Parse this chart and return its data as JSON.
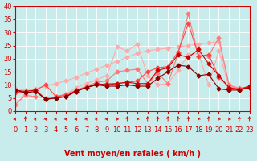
{
  "background_color": "#c8ecec",
  "grid_color": "#ffffff",
  "xlabel": "Vent moyen/en rafales ( km/h )",
  "xlim": [
    0,
    23
  ],
  "ylim": [
    0,
    40
  ],
  "xticks": [
    0,
    1,
    2,
    3,
    4,
    5,
    6,
    7,
    8,
    9,
    10,
    11,
    12,
    13,
    14,
    15,
    16,
    17,
    18,
    19,
    20,
    21,
    22,
    23
  ],
  "yticks": [
    0,
    5,
    10,
    15,
    20,
    25,
    30,
    35,
    40
  ],
  "tick_label_color": "#cc0000",
  "axis_label_color": "#cc0000",
  "axis_label_fontsize": 7,
  "tick_fontsize": 6,
  "lines": [
    {
      "x": [
        0,
        1,
        2,
        3,
        4,
        5,
        6,
        7,
        8,
        9,
        10,
        11,
        12,
        13,
        14,
        15,
        16,
        17,
        18,
        19,
        20,
        21,
        22,
        23
      ],
      "y": [
        8.5,
        8.0,
        8.5,
        9.5,
        10.5,
        11.5,
        13.0,
        14.5,
        16.0,
        17.5,
        19.0,
        20.5,
        22.0,
        23.0,
        23.5,
        24.0,
        24.5,
        25.0,
        25.5,
        26.0,
        26.5,
        9.5,
        9.0,
        9.0
      ],
      "color": "#ffaaaa",
      "linewidth": 0.8,
      "marker": "D",
      "markersize": 2.5
    },
    {
      "x": [
        0,
        1,
        2,
        3,
        4,
        5,
        6,
        7,
        8,
        9,
        10,
        11,
        12,
        13,
        14,
        15,
        16,
        17,
        18,
        19,
        20,
        21,
        22,
        23
      ],
      "y": [
        2.5,
        6.5,
        8.0,
        5.0,
        5.0,
        6.5,
        9.0,
        10.5,
        12.0,
        13.5,
        24.5,
        23.0,
        25.5,
        13.5,
        10.0,
        10.5,
        15.5,
        21.5,
        22.0,
        10.0,
        23.0,
        9.0,
        8.5,
        9.5
      ],
      "color": "#ffaaaa",
      "linewidth": 0.8,
      "marker": "D",
      "markersize": 2.5
    },
    {
      "x": [
        0,
        1,
        2,
        3,
        4,
        5,
        6,
        7,
        8,
        9,
        10,
        11,
        12,
        13,
        14,
        15,
        16,
        17,
        18,
        19,
        20,
        21,
        22,
        23
      ],
      "y": [
        2.5,
        6.0,
        5.5,
        5.0,
        5.5,
        6.5,
        8.0,
        9.5,
        11.0,
        11.5,
        15.0,
        15.5,
        16.0,
        10.5,
        14.5,
        10.5,
        22.0,
        37.0,
        21.0,
        21.0,
        28.0,
        10.0,
        8.5,
        9.0
      ],
      "color": "#ff7777",
      "linewidth": 0.8,
      "marker": "D",
      "markersize": 2.5
    },
    {
      "x": [
        0,
        1,
        2,
        3,
        4,
        5,
        6,
        7,
        8,
        9,
        10,
        11,
        12,
        13,
        14,
        15,
        16,
        17,
        18,
        19,
        20,
        21,
        22,
        23
      ],
      "y": [
        7.0,
        7.5,
        8.0,
        10.0,
        5.5,
        6.0,
        7.5,
        9.0,
        10.0,
        10.5,
        10.5,
        11.0,
        11.5,
        15.0,
        16.5,
        17.0,
        22.5,
        33.5,
        21.0,
        21.5,
        13.0,
        9.0,
        8.5,
        9.5
      ],
      "color": "#ff4444",
      "linewidth": 0.8,
      "marker": "D",
      "markersize": 2.5
    },
    {
      "x": [
        0,
        1,
        2,
        3,
        4,
        5,
        6,
        7,
        8,
        9,
        10,
        11,
        12,
        13,
        14,
        15,
        16,
        17,
        18,
        19,
        20,
        21,
        22,
        23
      ],
      "y": [
        8.0,
        7.5,
        8.0,
        4.5,
        5.0,
        5.5,
        8.0,
        9.0,
        10.5,
        10.0,
        10.5,
        11.0,
        10.5,
        10.5,
        15.5,
        16.5,
        21.5,
        20.5,
        23.5,
        18.0,
        13.5,
        9.0,
        8.0,
        9.5
      ],
      "color": "#cc0000",
      "linewidth": 0.8,
      "marker": "D",
      "markersize": 2.5
    },
    {
      "x": [
        0,
        1,
        2,
        3,
        4,
        5,
        6,
        7,
        8,
        9,
        10,
        11,
        12,
        13,
        14,
        15,
        16,
        17,
        18,
        19,
        20,
        21,
        22,
        23
      ],
      "y": [
        8.0,
        7.0,
        7.5,
        4.5,
        5.0,
        5.5,
        7.5,
        9.0,
        10.0,
        9.5,
        9.5,
        10.0,
        9.5,
        9.5,
        12.5,
        15.0,
        17.5,
        17.0,
        13.5,
        14.0,
        8.5,
        8.0,
        8.0,
        9.0
      ],
      "color": "#880000",
      "linewidth": 0.8,
      "marker": "D",
      "markersize": 2.5
    }
  ],
  "wind_angles": [
    45,
    0,
    45,
    45,
    45,
    45,
    45,
    45,
    45,
    45,
    315,
    0,
    315,
    0,
    0,
    0,
    0,
    0,
    315,
    0,
    315,
    315,
    0,
    0
  ]
}
